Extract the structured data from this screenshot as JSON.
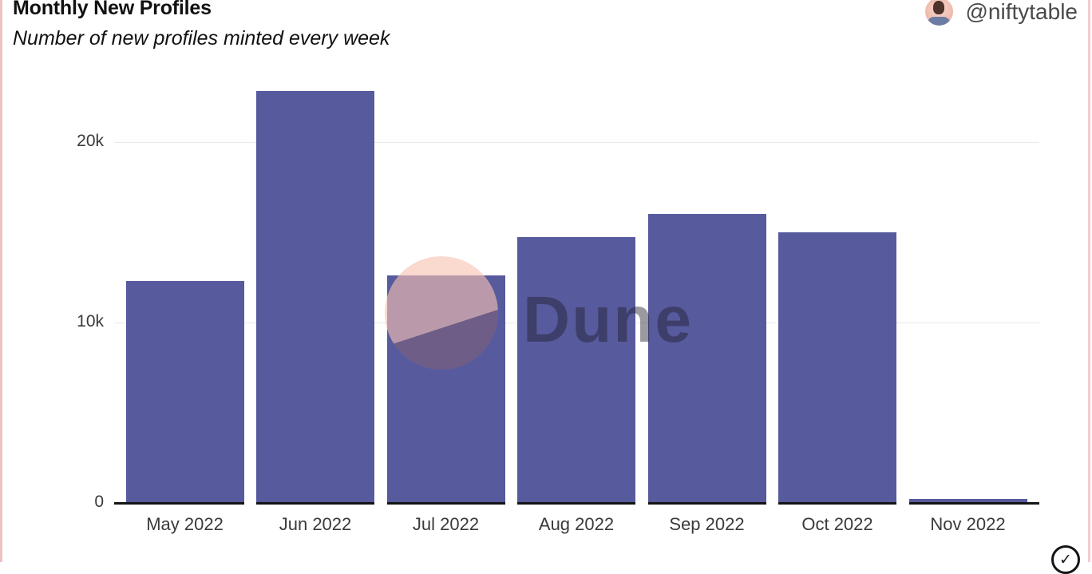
{
  "header": {
    "title": "Monthly New Profiles",
    "subtitle": "Number of new profiles minted every week"
  },
  "attribution": {
    "handle": "@niftytable",
    "avatar_icon": "person-avatar-icon"
  },
  "watermark": {
    "text": "Dune",
    "logo_icon": "dune-logo-circle-icon"
  },
  "footer": {
    "verified_icon": "circle-check-icon",
    "verified_glyph": "✓"
  },
  "colors": {
    "bar": "#575a9d",
    "axis_line": "#141414",
    "gridline": "#e9e9e9",
    "tick_label": "#3a3a3a",
    "left_border": "#eec2bf",
    "right_border": "#f6cbd1",
    "watermark_circle": "#f7c2b2",
    "watermark_dark": "#1f2063",
    "watermark_text": "#20202c",
    "title_text": "#111111",
    "handle_text": "#4a4a4a"
  },
  "chart_data": {
    "type": "bar",
    "categories": [
      "May 2022",
      "Jun 2022",
      "Jul 2022",
      "Aug 2022",
      "Sep 2022",
      "Oct 2022",
      "Nov 2022"
    ],
    "values": [
      12300,
      22800,
      12600,
      14700,
      16000,
      15000,
      200
    ],
    "title": "Monthly New Profiles",
    "subtitle": "Number of new profiles minted every week",
    "xlabel": "",
    "ylabel": "",
    "ylim": [
      0,
      23000
    ],
    "yticks": [
      {
        "value": 0,
        "label": "0"
      },
      {
        "value": 10000,
        "label": "10k"
      },
      {
        "value": 20000,
        "label": "20k"
      }
    ],
    "grid": "horizontal",
    "legend": "none",
    "bar_color": "#575a9d"
  }
}
